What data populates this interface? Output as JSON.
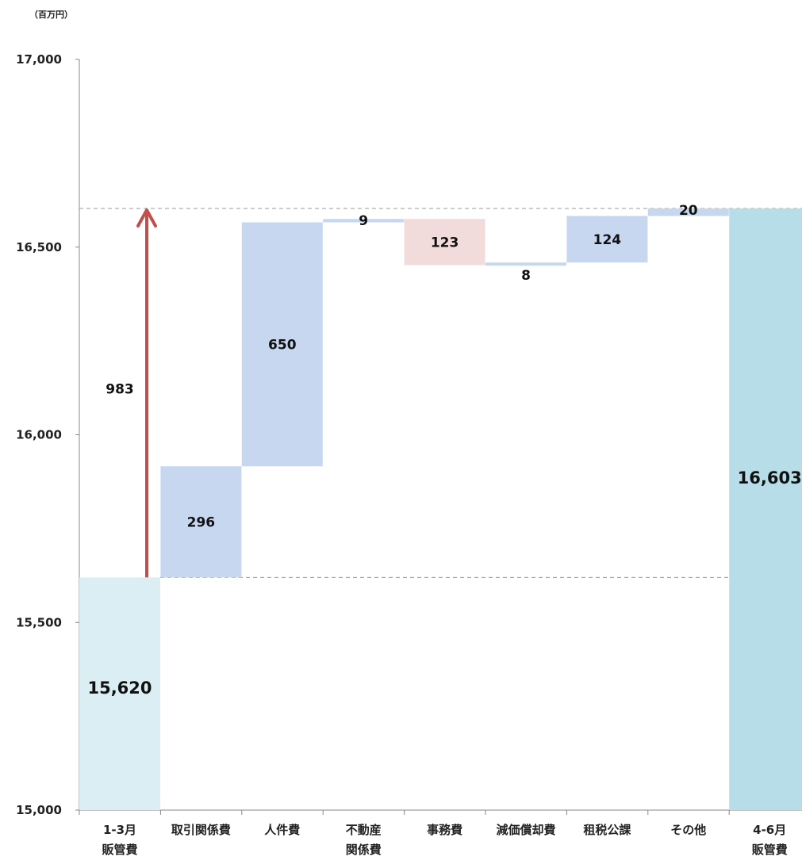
{
  "unit_label": "（百万円）",
  "chart_data": {
    "type": "waterfall",
    "title": "",
    "unit": "（百万円）",
    "ylim": [
      15000,
      17000
    ],
    "yticks": [
      15000,
      15500,
      16000,
      16500,
      17000
    ],
    "ytick_labels": [
      "15,000",
      "15,500",
      "16,000",
      "16,500",
      "17,000"
    ],
    "bars": [
      {
        "category": [
          "1-3月",
          "販管費"
        ],
        "kind": "total",
        "base": 15000,
        "top": 15620,
        "label": "15,620",
        "color": "#daeef3"
      },
      {
        "category": [
          "取引関係費"
        ],
        "kind": "increase",
        "base": 15620,
        "top": 15916,
        "label": "296",
        "color": "#c6d7ef"
      },
      {
        "category": [
          "人件費"
        ],
        "kind": "increase",
        "base": 15916,
        "top": 16566,
        "label": "650",
        "color": "#c6d7ef"
      },
      {
        "category": [
          "不動産",
          "関係費"
        ],
        "kind": "increase",
        "base": 16566,
        "top": 16575,
        "label": "9",
        "color": "#c6d7ef"
      },
      {
        "category": [
          "事務費"
        ],
        "kind": "decrease",
        "base": 16452,
        "top": 16575,
        "label": "123",
        "color": "#f2dcdb"
      },
      {
        "category": [
          "減価償却費"
        ],
        "kind": "increase",
        "base": 16451,
        "top": 16459,
        "label": "8",
        "color": "#c6d7ef"
      },
      {
        "category": [
          "租税公課"
        ],
        "kind": "increase",
        "base": 16459,
        "top": 16583,
        "label": "124",
        "color": "#c6d7ef"
      },
      {
        "category": [
          "その他"
        ],
        "kind": "increase",
        "base": 16583,
        "top": 16603,
        "label": "20",
        "color": "#c6d7ef"
      },
      {
        "category": [
          "4-6月",
          "販管費"
        ],
        "kind": "total",
        "base": 15000,
        "top": 16603,
        "label": "16,603",
        "color": "#b7dde8"
      }
    ],
    "change_arrow": {
      "from": 15620,
      "to": 16603,
      "label": "983",
      "color": "#c0504d"
    },
    "reference_lines": [
      15620,
      16603
    ]
  }
}
